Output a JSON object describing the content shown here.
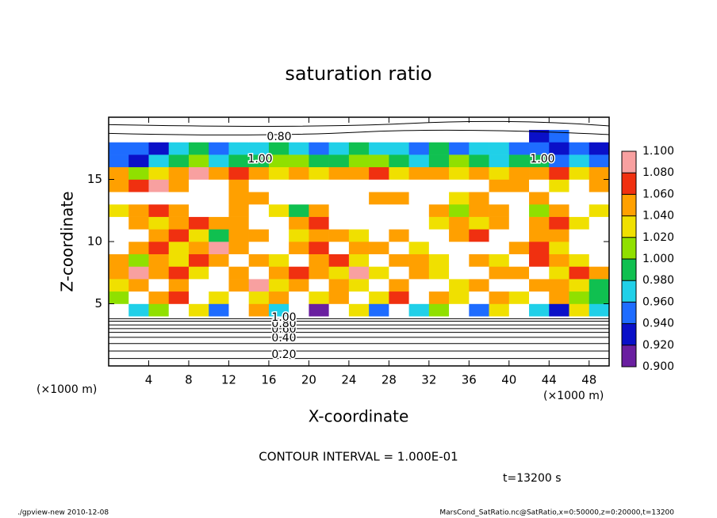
{
  "chart_data": {
    "type": "heatmap",
    "title": "saturation ratio",
    "xlabel": "X-coordinate",
    "ylabel": "Z-coordinate",
    "x_unit": "(×1000 m)",
    "y_unit": "(×1000 m)",
    "contour_interval": "CONTOUR INTERVAL = 1.000E-01",
    "time": "t=13200 s",
    "footer_left": "./gpview-new   2010-12-08",
    "footer_right": "MarsCond_SatRatio.nc@SatRatio,x=0:50000,z=0:20000,t=13200",
    "contour_labels": [
      "0.80",
      "1.00",
      "1.00",
      "0.20",
      "0.40",
      "0.60",
      "0.80",
      "1.00"
    ],
    "xlim": [
      0,
      50
    ],
    "ylim": [
      0,
      20
    ],
    "xticks": [
      4,
      8,
      12,
      16,
      20,
      24,
      28,
      32,
      36,
      40,
      44,
      48
    ],
    "yticks": [
      5,
      10,
      15
    ],
    "x": [
      1,
      3,
      5,
      7,
      9,
      11,
      13,
      15,
      17,
      19,
      21,
      23,
      25,
      27,
      29,
      31,
      33,
      35,
      37,
      39,
      41,
      43,
      45,
      47,
      49
    ],
    "y": [
      0.5,
      1.5,
      2.5,
      3.5,
      4.5,
      5.5,
      6.5,
      7.5,
      8.5,
      9.5,
      10.5,
      11.5,
      12.5,
      13.5,
      14.5,
      15.5,
      16.5,
      17.5,
      18.5,
      19.5
    ],
    "values": [
      [
        0.15,
        0.15,
        0.15,
        0.15,
        0.15,
        0.15,
        0.15,
        0.15,
        0.15,
        0.15,
        0.15,
        0.15,
        0.15,
        0.15,
        0.15,
        0.15,
        0.15,
        0.15,
        0.15,
        0.15,
        0.15,
        0.15,
        0.15,
        0.15,
        0.15
      ],
      [
        0.3,
        0.3,
        0.3,
        0.3,
        0.3,
        0.3,
        0.3,
        0.3,
        0.3,
        0.3,
        0.3,
        0.3,
        0.3,
        0.3,
        0.3,
        0.3,
        0.3,
        0.3,
        0.3,
        0.3,
        0.3,
        0.3,
        0.3,
        0.3,
        0.3
      ],
      [
        0.5,
        0.5,
        0.5,
        0.5,
        0.5,
        0.5,
        0.5,
        0.5,
        0.5,
        0.5,
        0.5,
        0.5,
        0.5,
        0.5,
        0.5,
        0.5,
        0.5,
        0.5,
        0.5,
        0.5,
        0.5,
        0.5,
        0.5,
        0.5,
        0.5
      ],
      [
        0.8,
        0.8,
        0.8,
        0.8,
        0.8,
        0.8,
        0.8,
        0.8,
        0.8,
        0.8,
        0.8,
        0.8,
        0.8,
        0.8,
        0.8,
        0.8,
        0.8,
        0.8,
        0.8,
        0.8,
        0.8,
        0.8,
        0.8,
        0.8,
        0.8
      ],
      [
        0.85,
        0.97,
        1.02,
        0.88,
        1.04,
        0.95,
        0.86,
        1.05,
        0.98,
        0.85,
        0.9,
        0.88,
        1.03,
        0.96,
        0.86,
        0.98,
        1.01,
        0.87,
        0.95,
        1.03,
        0.88,
        0.97,
        0.92,
        1.04,
        0.98
      ],
      [
        1.02,
        0.88,
        1.05,
        1.07,
        0.89,
        1.03,
        0.86,
        1.04,
        1.06,
        0.87,
        1.03,
        1.05,
        0.88,
        1.04,
        1.07,
        0.86,
        1.05,
        1.03,
        0.88,
        1.06,
        1.04,
        0.87,
        1.05,
        1.02,
        1.0
      ],
      [
        1.04,
        1.06,
        0.88,
        1.05,
        0.87,
        0.86,
        1.06,
        1.08,
        1.03,
        1.05,
        0.87,
        1.06,
        1.04,
        0.88,
        1.05,
        0.87,
        0.86,
        1.04,
        1.06,
        0.88,
        0.87,
        1.05,
        1.06,
        1.03,
        0.99
      ],
      [
        1.06,
        1.08,
        1.05,
        1.07,
        1.04,
        0.88,
        1.05,
        0.87,
        1.06,
        1.07,
        1.05,
        1.04,
        1.08,
        1.03,
        0.88,
        1.05,
        1.04,
        0.87,
        0.86,
        1.05,
        1.06,
        0.88,
        1.04,
        1.07,
        1.05
      ],
      [
        1.05,
        1.01,
        1.06,
        1.04,
        1.07,
        1.05,
        0.88,
        1.06,
        1.03,
        0.87,
        1.05,
        1.07,
        1.04,
        0.87,
        1.06,
        1.05,
        1.03,
        0.86,
        1.06,
        1.04,
        0.88,
        1.07,
        1.06,
        1.04,
        0.87
      ],
      [
        0.88,
        1.05,
        1.07,
        1.03,
        1.06,
        1.08,
        1.05,
        0.87,
        0.86,
        1.05,
        1.07,
        0.88,
        1.06,
        1.05,
        0.87,
        1.04,
        0.86,
        0.85,
        0.87,
        0.86,
        1.05,
        1.07,
        1.04,
        0.87,
        0.86
      ],
      [
        0.86,
        0.87,
        1.05,
        1.07,
        1.04,
        0.99,
        1.06,
        1.05,
        0.87,
        1.04,
        1.06,
        1.05,
        1.03,
        0.86,
        1.05,
        0.87,
        0.85,
        1.05,
        1.07,
        0.86,
        0.87,
        1.06,
        1.05,
        0.87,
        0.86
      ],
      [
        0.87,
        1.06,
        1.04,
        1.05,
        1.07,
        1.06,
        1.05,
        0.87,
        0.86,
        1.05,
        1.07,
        0.88,
        0.86,
        0.85,
        0.86,
        0.87,
        1.04,
        1.06,
        1.03,
        1.05,
        0.87,
        1.05,
        1.07,
        1.04,
        0.86
      ],
      [
        1.04,
        1.06,
        1.07,
        1.05,
        0.87,
        0.86,
        1.05,
        0.88,
        1.04,
        0.99,
        1.06,
        0.87,
        0.85,
        0.86,
        0.87,
        0.86,
        1.05,
        1.02,
        1.06,
        1.05,
        0.86,
        1.01,
        1.06,
        0.87,
        1.04
      ],
      [
        0.87,
        0.86,
        0.85,
        0.86,
        0.88,
        0.87,
        1.05,
        1.06,
        0.87,
        0.86,
        0.85,
        0.86,
        0.87,
        1.05,
        1.06,
        0.87,
        0.86,
        1.04,
        1.05,
        0.86,
        0.87,
        1.05,
        0.86,
        0.87,
        0.86
      ],
      [
        1.05,
        1.07,
        1.08,
        1.06,
        0.87,
        0.86,
        1.05,
        0.87,
        0.86,
        0.85,
        0.87,
        0.86,
        0.85,
        0.86,
        0.87,
        0.86,
        0.85,
        0.86,
        0.87,
        1.05,
        1.06,
        0.87,
        1.04,
        0.86,
        1.05
      ],
      [
        1.06,
        1.02,
        1.04,
        1.05,
        1.08,
        1.06,
        1.07,
        1.05,
        1.04,
        1.06,
        1.03,
        1.05,
        1.06,
        1.07,
        1.04,
        1.05,
        1.06,
        1.03,
        1.05,
        1.04,
        1.06,
        1.05,
        1.07,
        1.04,
        1.06
      ],
      [
        0.96,
        0.93,
        0.98,
        1.0,
        1.01,
        0.97,
        1.0,
        0.99,
        1.02,
        1.01,
        1.0,
        0.99,
        1.01,
        1.02,
        1.0,
        0.98,
        0.99,
        1.01,
        1.0,
        0.98,
        1.0,
        0.99,
        0.96,
        0.98,
        0.95
      ],
      [
        0.95,
        0.96,
        0.94,
        0.97,
        0.99,
        0.96,
        0.98,
        0.97,
        0.99,
        0.98,
        0.96,
        0.97,
        0.99,
        0.98,
        0.97,
        0.95,
        0.99,
        0.96,
        0.97,
        0.98,
        0.95,
        0.96,
        0.94,
        0.95,
        0.93
      ],
      [
        0.88,
        0.87,
        0.85,
        0.86,
        0.84,
        0.83,
        0.85,
        0.86,
        0.84,
        0.85,
        0.83,
        0.84,
        0.86,
        0.85,
        0.84,
        0.83,
        0.85,
        0.86,
        0.87,
        0.85,
        0.84,
        0.94,
        0.95,
        0.86,
        0.85
      ],
      [
        0.78,
        0.78,
        0.78,
        0.78,
        0.78,
        0.78,
        0.78,
        0.78,
        0.78,
        0.78,
        0.78,
        0.78,
        0.78,
        0.78,
        0.78,
        0.78,
        0.78,
        0.78,
        0.78,
        0.78,
        0.78,
        0.78,
        0.78,
        0.78,
        0.78
      ]
    ],
    "colorbar_ticks": [
      {
        "value": 1.1,
        "label": "1.100"
      },
      {
        "value": 1.08,
        "label": "1.080"
      },
      {
        "value": 1.06,
        "label": "1.060"
      },
      {
        "value": 1.04,
        "label": "1.040"
      },
      {
        "value": 1.02,
        "label": "1.020"
      },
      {
        "value": 1.0,
        "label": "1.000"
      },
      {
        "value": 0.98,
        "label": "0.980"
      },
      {
        "value": 0.96,
        "label": "0.960"
      },
      {
        "value": 0.94,
        "label": "0.940"
      },
      {
        "value": 0.92,
        "label": "0.920"
      },
      {
        "value": 0.9,
        "label": "0.900"
      }
    ],
    "colorbar_lim": [
      0.9,
      1.1
    ],
    "colors": [
      "#6a1fa0",
      "#0a10c8",
      "#1e6cff",
      "#20d0e8",
      "#10c050",
      "#90e000",
      "#f0e000",
      "#ffa000",
      "#f03010",
      "#f8a0a0"
    ]
  }
}
